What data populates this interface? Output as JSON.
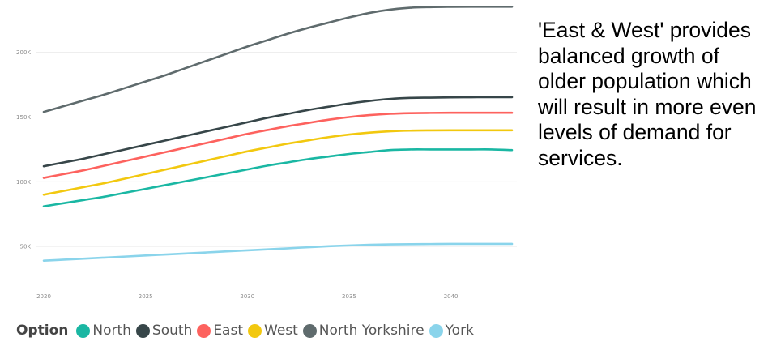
{
  "chart_data": {
    "type": "line",
    "x": [
      2020,
      2021,
      2022,
      2023,
      2024,
      2025,
      2026,
      2027,
      2028,
      2029,
      2030,
      2031,
      2032,
      2033,
      2034,
      2035,
      2036,
      2037,
      2038,
      2039,
      2040,
      2041,
      2042,
      2043
    ],
    "x_ticks": [
      "2020",
      "2025",
      "2030",
      "2035",
      "2040"
    ],
    "y_ticks": [
      "50K",
      "100K",
      "150K",
      "200K"
    ],
    "ylim": [
      0,
      215000
    ],
    "xlim": [
      2020,
      2043
    ],
    "grid": true,
    "legend_title": "Option",
    "legend_position": "bottom-left",
    "series": [
      {
        "name": "North",
        "color": "#1ab7a3",
        "values": [
          81000,
          83500,
          86000,
          88500,
          91500,
          94500,
          97500,
          100500,
          103500,
          106500,
          109500,
          112500,
          115000,
          117500,
          119500,
          121500,
          123000,
          124500,
          125000,
          125000,
          125000,
          125000,
          125000,
          124500
        ]
      },
      {
        "name": "South",
        "color": "#374649",
        "values": [
          112000,
          115000,
          118000,
          121500,
          125000,
          128500,
          132000,
          135500,
          139000,
          142500,
          146000,
          149500,
          152500,
          155500,
          158000,
          160500,
          162500,
          164000,
          164800,
          165000,
          165200,
          165300,
          165400,
          165400
        ]
      },
      {
        "name": "East",
        "color": "#fd625e",
        "values": [
          103000,
          106000,
          109000,
          112500,
          116000,
          119500,
          123000,
          126500,
          130000,
          133500,
          137000,
          140000,
          143000,
          145500,
          148000,
          150000,
          151500,
          152500,
          153000,
          153200,
          153300,
          153300,
          153300,
          153300
        ]
      },
      {
        "name": "West",
        "color": "#f2c80f",
        "values": [
          90000,
          93000,
          96000,
          99000,
          102500,
          106000,
          109500,
          113000,
          116500,
          120000,
          123500,
          126500,
          129500,
          132000,
          134500,
          136500,
          138000,
          139000,
          139500,
          139700,
          139800,
          139800,
          139800,
          139800
        ]
      },
      {
        "name": "North Yorkshire",
        "color": "#5f6b6d",
        "values": [
          154000,
          158500,
          163000,
          167500,
          172500,
          177500,
          182500,
          188000,
          193500,
          199000,
          204500,
          209500,
          214500,
          219000,
          223000,
          227000,
          230500,
          233000,
          234500,
          235000,
          235200,
          235300,
          235300,
          235300
        ]
      },
      {
        "name": "York",
        "color": "#8ad4eb",
        "values": [
          39000,
          39800,
          40600,
          41400,
          42200,
          43000,
          43800,
          44600,
          45400,
          46200,
          47000,
          47800,
          48600,
          49400,
          50200,
          50800,
          51300,
          51600,
          51800,
          51900,
          52000,
          52000,
          52000,
          52000
        ]
      }
    ]
  },
  "note": {
    "text": "'East & West' provides balanced growth of older population which will result in more even levels of demand for services."
  }
}
